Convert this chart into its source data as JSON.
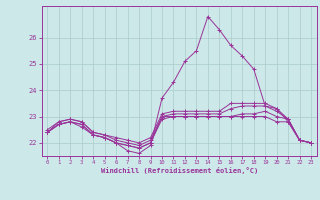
{
  "xlabel": "Windchill (Refroidissement éolien,°C)",
  "hours": [
    0,
    1,
    2,
    3,
    4,
    5,
    6,
    7,
    8,
    9,
    10,
    11,
    12,
    13,
    14,
    15,
    16,
    17,
    18,
    19,
    20,
    21,
    22,
    23
  ],
  "line1": [
    22.4,
    22.7,
    22.8,
    22.7,
    22.3,
    22.2,
    22.0,
    21.9,
    21.8,
    22.0,
    23.0,
    23.0,
    23.0,
    23.0,
    23.0,
    23.0,
    23.0,
    23.0,
    23.0,
    23.0,
    22.8,
    22.8,
    22.1,
    22.0
  ],
  "line2": [
    22.4,
    22.7,
    22.8,
    22.7,
    22.3,
    22.2,
    22.0,
    21.9,
    21.8,
    22.0,
    22.9,
    23.0,
    23.0,
    23.0,
    23.0,
    23.0,
    23.0,
    23.1,
    23.1,
    23.2,
    23.0,
    22.9,
    22.1,
    22.0
  ],
  "line3": [
    22.4,
    22.8,
    22.9,
    22.8,
    22.4,
    22.3,
    22.1,
    22.0,
    21.9,
    22.1,
    23.0,
    23.1,
    23.1,
    23.1,
    23.1,
    23.1,
    23.3,
    23.4,
    23.4,
    23.4,
    23.2,
    22.9,
    22.1,
    22.0
  ],
  "line4": [
    22.5,
    22.8,
    22.9,
    22.8,
    22.4,
    22.3,
    22.2,
    22.1,
    22.0,
    22.2,
    23.1,
    23.2,
    23.2,
    23.2,
    23.2,
    23.2,
    23.5,
    23.5,
    23.5,
    23.5,
    23.3,
    22.9,
    22.1,
    22.0
  ],
  "line_main": [
    22.4,
    22.7,
    22.8,
    22.6,
    22.3,
    22.2,
    22.0,
    21.7,
    21.6,
    21.9,
    23.7,
    24.3,
    25.1,
    25.5,
    26.8,
    26.3,
    25.7,
    25.3,
    24.8,
    23.4,
    23.3,
    22.8,
    22.1,
    22.0
  ],
  "bg_color": "#cce8e8",
  "line_color": "#993399",
  "grid_color": "#aacccc",
  "ylim": [
    21.5,
    27.2
  ],
  "yticks": [
    22,
    23,
    24,
    25,
    26
  ],
  "xlim": [
    -0.5,
    23.5
  ]
}
